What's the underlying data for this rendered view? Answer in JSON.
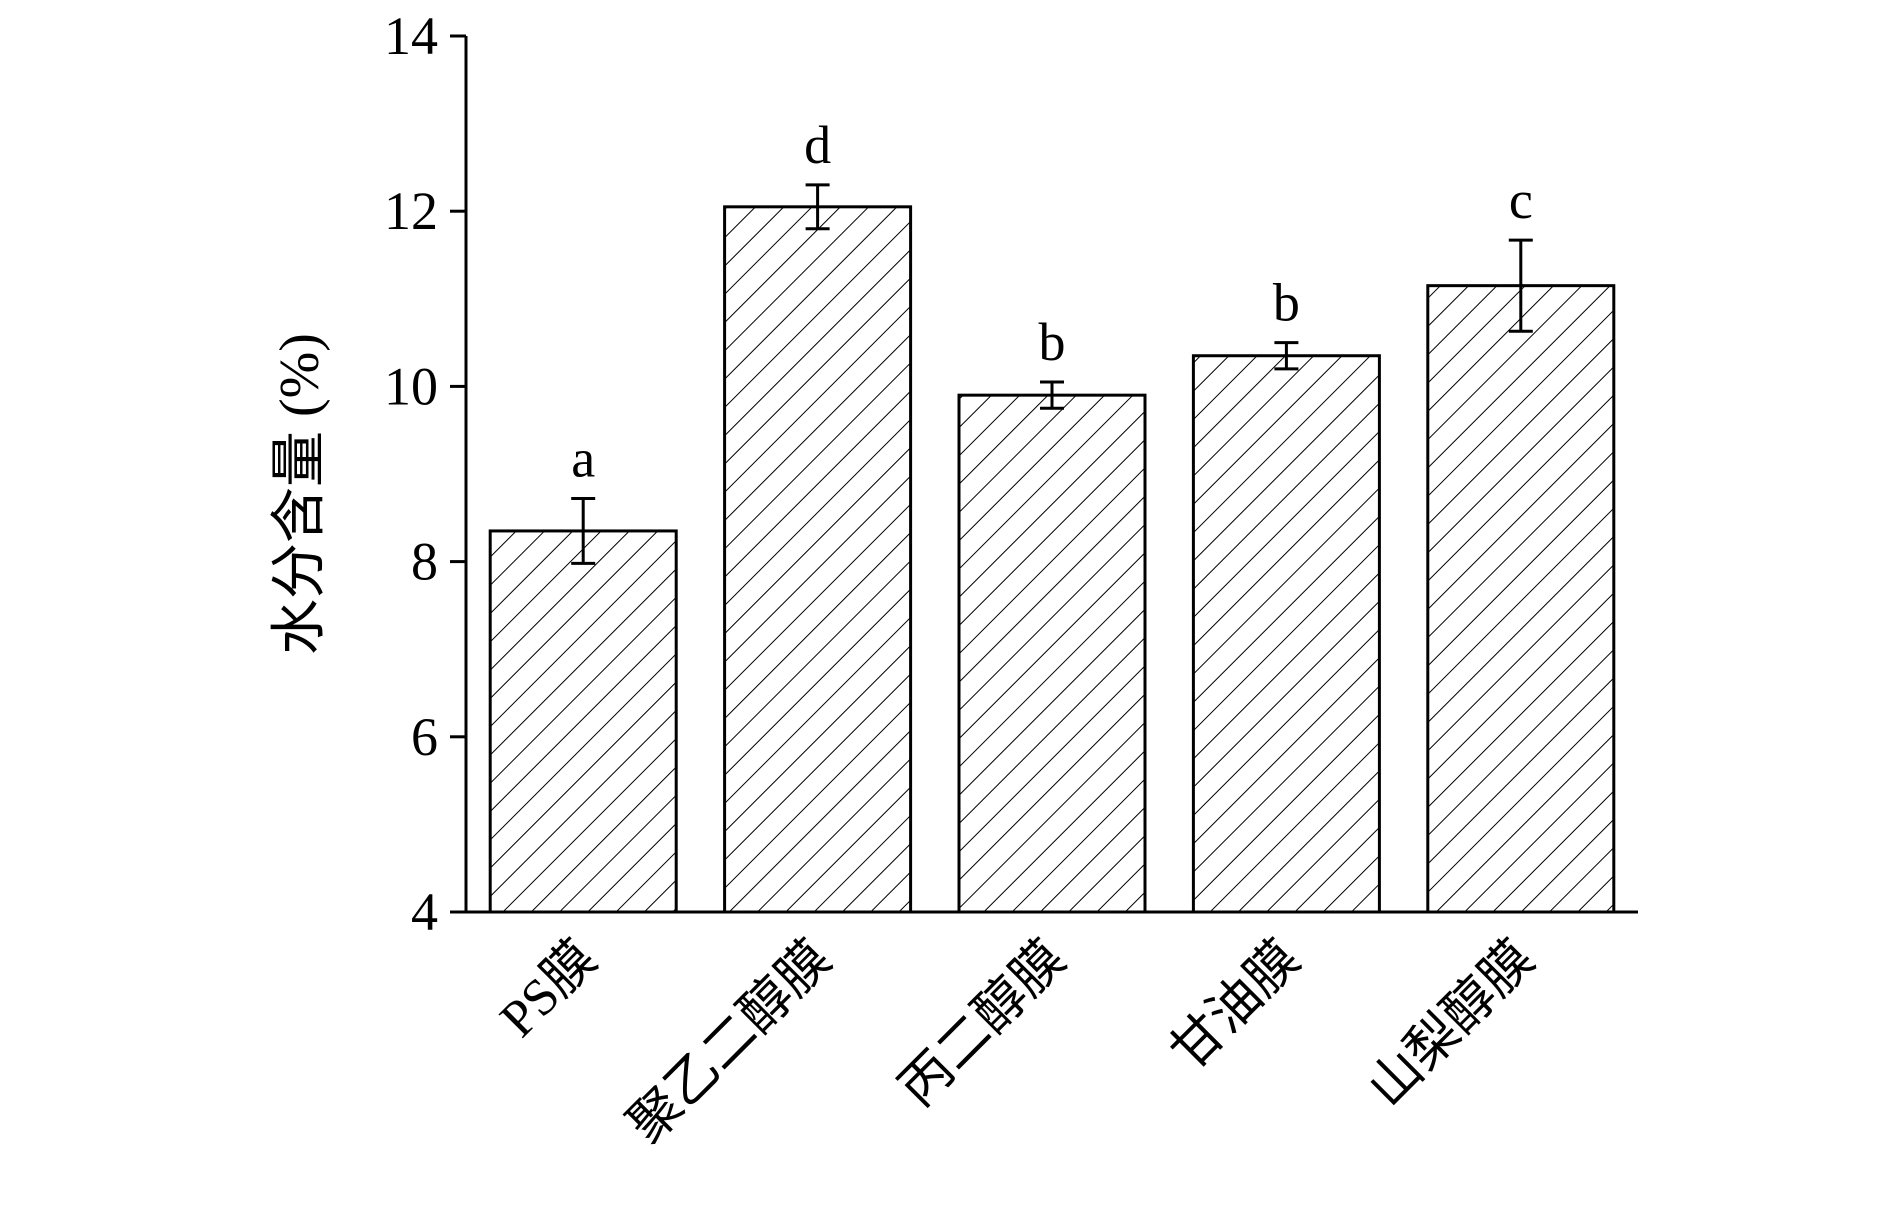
{
  "chart_data": {
    "type": "bar",
    "title": "",
    "xlabel": "",
    "ylabel": "水分含量 (%)",
    "ylim": [
      4,
      14
    ],
    "yticks": [
      4,
      6,
      8,
      10,
      12,
      14
    ],
    "grid": false,
    "legend": "none",
    "categories": [
      "PS膜",
      "聚乙二醇膜",
      "丙二醇膜",
      "甘油膜",
      "山梨醇膜"
    ],
    "series": [
      {
        "values": [
          8.35,
          12.05,
          9.9,
          10.35,
          11.15
        ],
        "errors": [
          0.37,
          0.25,
          0.15,
          0.15,
          0.52
        ],
        "annotations": [
          "a",
          "d",
          "b",
          "b",
          "c"
        ]
      }
    ],
    "bar_fill": "#ffffff",
    "bar_stroke": "#000000",
    "hatch": "diagonal"
  }
}
